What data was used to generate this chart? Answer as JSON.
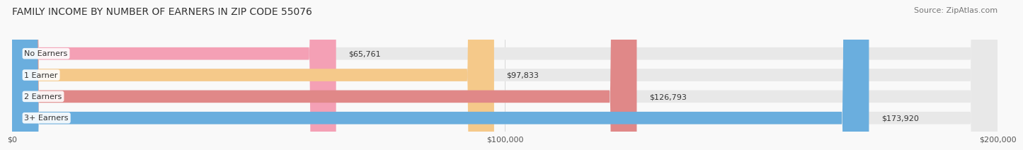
{
  "title": "FAMILY INCOME BY NUMBER OF EARNERS IN ZIP CODE 55076",
  "source": "Source: ZipAtlas.com",
  "categories": [
    "No Earners",
    "1 Earner",
    "2 Earners",
    "3+ Earners"
  ],
  "values": [
    65761,
    97833,
    126793,
    173920
  ],
  "labels": [
    "$65,761",
    "$97,833",
    "$126,793",
    "$173,920"
  ],
  "bar_colors": [
    "#f4a0b5",
    "#f5c98a",
    "#e08888",
    "#6aaede"
  ],
  "bar_bg_color": "#e8e8e8",
  "xlim": [
    0,
    200000
  ],
  "xticks": [
    0,
    100000,
    200000
  ],
  "xtick_labels": [
    "$0",
    "$100,000",
    "$200,000"
  ],
  "title_fontsize": 10,
  "source_fontsize": 8,
  "bar_height": 0.58,
  "background_color": "#f9f9f9"
}
